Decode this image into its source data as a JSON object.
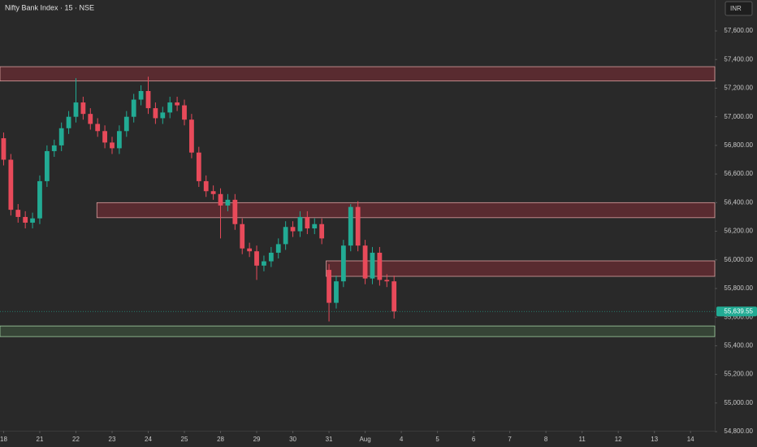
{
  "chart_data": {
    "type": "candlestick",
    "title": "Nifty Bank Index · 15 · NSE",
    "currency": "INR",
    "x": [
      0,
      0.2,
      0.4,
      0.6,
      0.8,
      1,
      1.2,
      1.4,
      1.6,
      1.8,
      2,
      2.2,
      2.4,
      2.6,
      2.8,
      3,
      3.2,
      3.4,
      3.6,
      3.8,
      4,
      4.2,
      4.4,
      4.6,
      4.8,
      5,
      5.2,
      5.4,
      5.6,
      5.8,
      6,
      6.2,
      6.4,
      6.6,
      6.8,
      7,
      7.2,
      7.4,
      7.6,
      7.8,
      8,
      8.2,
      8.4,
      8.6,
      8.8,
      9,
      9.2,
      9.4,
      9.6,
      9.8,
      10,
      10.2,
      10.4,
      10.6,
      10.8
    ],
    "open": [
      56850,
      56700,
      56350,
      56300,
      56260,
      56290,
      56550,
      56760,
      56800,
      56920,
      57000,
      57100,
      57020,
      56950,
      56900,
      56820,
      56780,
      56900,
      57000,
      57120,
      57180,
      57060,
      56990,
      57030,
      57100,
      57080,
      56980,
      56750,
      56550,
      56480,
      56460,
      56380,
      56420,
      56250,
      56080,
      56060,
      55960,
      55990,
      56050,
      56110,
      56230,
      56200,
      56300,
      56220,
      56250,
      55930,
      55700,
      55850,
      56100,
      56370,
      56100,
      55870,
      56050,
      55860,
      55850
    ],
    "high": [
      56890,
      56740,
      56390,
      56340,
      56330,
      56590,
      56800,
      56840,
      56960,
      57040,
      57270,
      57140,
      57060,
      56990,
      56940,
      56860,
      56940,
      57040,
      57160,
      57220,
      57280,
      57100,
      57070,
      57140,
      57140,
      57120,
      57020,
      56790,
      56590,
      56520,
      56500,
      56460,
      56460,
      56290,
      56120,
      56100,
      56030,
      56090,
      56150,
      56270,
      56270,
      56340,
      56340,
      56290,
      56290,
      55970,
      55890,
      56140,
      56390,
      56410,
      56140,
      56090,
      56090,
      55900,
      55890
    ],
    "low": [
      56660,
      56310,
      56260,
      56220,
      56220,
      56250,
      56510,
      56720,
      56760,
      56880,
      56960,
      56980,
      56910,
      56860,
      56780,
      56740,
      56740,
      56860,
      56960,
      57080,
      57020,
      56950,
      56950,
      56990,
      57040,
      56940,
      56710,
      56510,
      56440,
      56420,
      56150,
      56340,
      56210,
      56040,
      56020,
      55860,
      55920,
      55950,
      56010,
      56070,
      56160,
      56160,
      56180,
      56180,
      56110,
      55570,
      55660,
      55810,
      56060,
      56060,
      55830,
      55830,
      55820,
      55810,
      55590
    ],
    "close": [
      56700,
      56350,
      56300,
      56260,
      56290,
      56550,
      56760,
      56800,
      56920,
      57000,
      57100,
      57020,
      56950,
      56900,
      56820,
      56780,
      56900,
      57000,
      57120,
      57180,
      57060,
      56990,
      57030,
      57100,
      57080,
      56980,
      56750,
      56550,
      56480,
      56460,
      56380,
      56420,
      56250,
      56080,
      56060,
      55960,
      55990,
      56050,
      56110,
      56230,
      56200,
      56300,
      56220,
      56250,
      56150,
      55700,
      55850,
      56100,
      56370,
      56100,
      55870,
      56050,
      55860,
      55850,
      55639.55
    ],
    "last_label": "55,639.55",
    "up_color": "#22ab94",
    "down_color": "#e84a5a",
    "zones": [
      {
        "low": 57250,
        "high": 57350,
        "start": -0.1,
        "fill": "rgba(130,45,55,0.55)",
        "stroke": "#d9a0a0"
      },
      {
        "low": 56295,
        "high": 56400,
        "start": 2.58,
        "fill": "rgba(130,45,55,0.55)",
        "stroke": "#d9a0a0"
      },
      {
        "low": 55885,
        "high": 55993,
        "start": 8.92,
        "fill": "rgba(130,45,55,0.55)",
        "stroke": "#d9a0a0"
      },
      {
        "low": 55464,
        "high": 55538,
        "start": -0.1,
        "fill": "rgba(60,80,60,0.7)",
        "stroke": "#9fcf9f"
      }
    ],
    "xlim": [
      -0.1,
      19.67
    ],
    "ylim": [
      54806,
      57816
    ],
    "xticks": [
      {
        "value": 0,
        "label": "18"
      },
      {
        "value": 1,
        "label": "21"
      },
      {
        "value": 2,
        "label": "22"
      },
      {
        "value": 3,
        "label": "23"
      },
      {
        "value": 4,
        "label": "24"
      },
      {
        "value": 5,
        "label": "25"
      },
      {
        "value": 6,
        "label": "28"
      },
      {
        "value": 7,
        "label": "29"
      },
      {
        "value": 8,
        "label": "30"
      },
      {
        "value": 9,
        "label": "31"
      },
      {
        "value": 10,
        "label": "Aug"
      },
      {
        "value": 11,
        "label": "4"
      },
      {
        "value": 12,
        "label": "5"
      },
      {
        "value": 13,
        "label": "6"
      },
      {
        "value": 14,
        "label": "7"
      },
      {
        "value": 15,
        "label": "8"
      },
      {
        "value": 16,
        "label": "11"
      },
      {
        "value": 17,
        "label": "12"
      },
      {
        "value": 18,
        "label": "13"
      },
      {
        "value": 19,
        "label": "14"
      }
    ],
    "yticks": [
      {
        "value": 57600,
        "label": "57,600.00"
      },
      {
        "value": 57400,
        "label": "57,400.00"
      },
      {
        "value": 57200,
        "label": "57,200.00"
      },
      {
        "value": 57000,
        "label": "57,000.00"
      },
      {
        "value": 56800,
        "label": "56,800.00"
      },
      {
        "value": 56600,
        "label": "56,600.00"
      },
      {
        "value": 56400,
        "label": "56,400.00"
      },
      {
        "value": 56200,
        "label": "56,200.00"
      },
      {
        "value": 56000,
        "label": "56,000.00"
      },
      {
        "value": 55800,
        "label": "55,800.00"
      },
      {
        "value": 55600,
        "label": "55,600.00"
      },
      {
        "value": 55400,
        "label": "55,400.00"
      },
      {
        "value": 55200,
        "label": "55,200.00"
      },
      {
        "value": 55000,
        "label": "55,000.00"
      },
      {
        "value": 54800,
        "label": "54,800.00"
      }
    ],
    "grid": false
  }
}
